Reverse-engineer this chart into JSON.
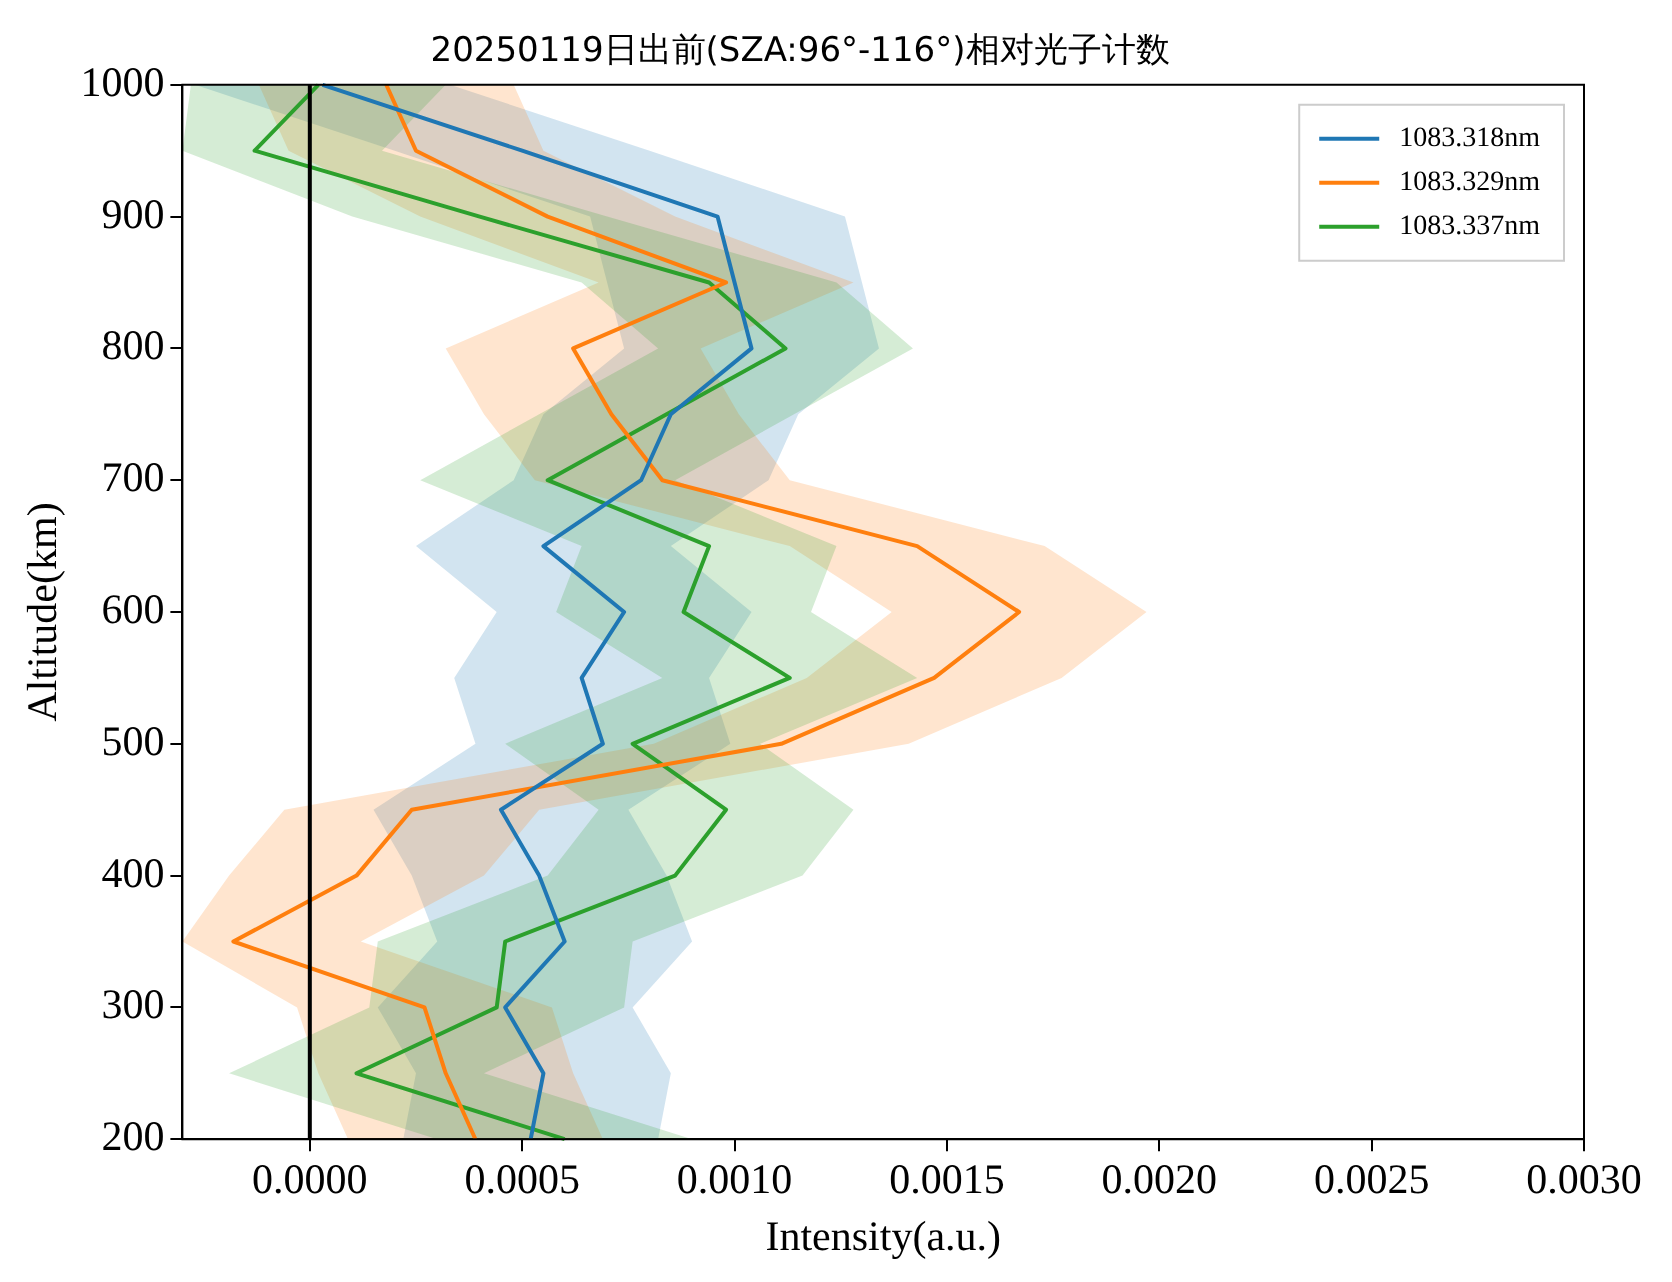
{
  "chart_data": {
    "type": "line",
    "title": "20250119日出前(SZA:96°-116°)相对光子计数",
    "xlabel": "Intensity(a.u.)",
    "ylabel": "Altitude(km)",
    "orientation": "horizontal",
    "categories": [
      "1000",
      null,
      "900",
      null,
      "800",
      null,
      "700",
      null,
      "600",
      null,
      "500",
      null,
      "400",
      null,
      "300",
      null,
      "200"
    ],
    "xlim": [
      -0.0003,
      0.003
    ],
    "xticks": [
      {
        "value": 0,
        "label": "0.0000"
      },
      {
        "value": 0.0005,
        "label": "0.0005"
      },
      {
        "value": 0.001,
        "label": "0.0010"
      },
      {
        "value": 0.0015,
        "label": "0.0015"
      },
      {
        "value": 0.002,
        "label": "0.0020"
      },
      {
        "value": 0.0025,
        "label": "0.0025"
      },
      {
        "value": 0.003,
        "label": "0.0030"
      }
    ],
    "legend": "top right",
    "marker": "none",
    "line_style": "solid",
    "ref_lines": [
      {
        "axis": "x",
        "value": 0,
        "color": "#000000"
      }
    ],
    "series": [
      {
        "name": "1083.318nm",
        "color": "#1f77b4",
        "values": [
          3e-05,
          0.0005,
          0.00096,
          0.001,
          0.00104,
          0.00085,
          0.00078,
          0.00055,
          0.00074,
          0.00064,
          0.00069,
          0.00045,
          0.00054,
          0.0006,
          0.00046,
          0.00055,
          0.00052
        ],
        "lower": [
          -0.00027,
          0.0002,
          0.00066,
          0.0007,
          0.00074,
          0.00055,
          0.00048,
          0.00025,
          0.00044,
          0.00034,
          0.00039,
          0.00015,
          0.00024,
          0.0003,
          0.00016,
          0.00025,
          0.00022
        ],
        "upper": [
          0.00033,
          0.0008,
          0.00126,
          0.0013,
          0.00134,
          0.00115,
          0.00108,
          0.00085,
          0.00104,
          0.00094,
          0.00099,
          0.00075,
          0.00084,
          0.0009,
          0.00076,
          0.00085,
          0.00082
        ]
      },
      {
        "name": "1083.329nm",
        "color": "#ff7f0e",
        "values": [
          0.00018,
          0.00025,
          0.00056,
          0.00098,
          0.00062,
          0.00071,
          0.00083,
          0.00143,
          0.00167,
          0.00147,
          0.00111,
          0.00024,
          0.00011,
          -0.00018,
          0.00027,
          0.00032,
          0.00039
        ],
        "lower": [
          -0.00012,
          -5e-05,
          0.00026,
          0.00068,
          0.00032,
          0.00041,
          0.00053,
          0.00113,
          0.00137,
          0.00117,
          0.00081,
          -6e-05,
          -0.00019,
          -0.0003,
          -3e-05,
          2e-05,
          9e-05
        ],
        "upper": [
          0.00048,
          0.00055,
          0.00086,
          0.00128,
          0.00092,
          0.00101,
          0.00113,
          0.00173,
          0.00197,
          0.00177,
          0.00141,
          0.00054,
          0.00041,
          0.00012,
          0.00057,
          0.00062,
          0.00069
        ]
      },
      {
        "name": "1083.337nm",
        "color": "#2ca02c",
        "values": [
          2e-05,
          -0.00013,
          0.0004,
          0.00094,
          0.00112,
          0.00084,
          0.00056,
          0.00094,
          0.00088,
          0.00113,
          0.00076,
          0.00098,
          0.00086,
          0.00046,
          0.00044,
          0.00011,
          0.0006
        ],
        "lower": [
          -0.00028,
          -0.0003,
          0.0001,
          0.00064,
          0.00082,
          0.00054,
          0.00026,
          0.00064,
          0.00058,
          0.00083,
          0.00046,
          0.00068,
          0.00056,
          0.00016,
          0.00014,
          -0.00019,
          0.0003
        ],
        "upper": [
          0.00032,
          0.00017,
          0.0007,
          0.00124,
          0.00142,
          0.00114,
          0.00086,
          0.00124,
          0.00118,
          0.00143,
          0.00106,
          0.00128,
          0.00116,
          0.00076,
          0.00074,
          0.00041,
          0.0009
        ]
      }
    ]
  }
}
